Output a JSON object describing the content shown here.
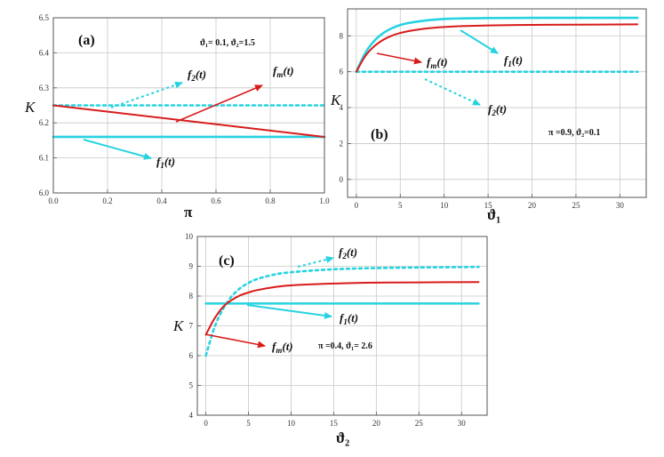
{
  "colors": {
    "fm": "#d81b1b",
    "f1": "#27d3e0",
    "f2": "#27d3e0",
    "grid": "#c8c8c8",
    "frame": "#555555"
  },
  "chart_data": [
    {
      "id": "a",
      "type": "line",
      "panel_label": "(a)",
      "xlabel": "π",
      "ylabel": "K",
      "xlim": [
        0,
        1
      ],
      "ylim": [
        6.0,
        6.5
      ],
      "xticks": [
        0,
        0.2,
        0.4,
        0.6,
        0.8,
        1.0
      ],
      "xtick_labels": [
        "0.0",
        "0.2",
        "0.4",
        "0.6",
        "0.8",
        "1.0"
      ],
      "yticks": [
        6.0,
        6.1,
        6.2,
        6.3,
        6.4,
        6.5
      ],
      "ytick_labels": [
        "6.0",
        "6.1",
        "6.2",
        "6.3",
        "6.4",
        "6.5"
      ],
      "params": "ϑ₁= 0.1, ϑ₂=1.5",
      "grid": true,
      "series": [
        {
          "key": "fm",
          "label": "fm(t)",
          "style": "solid",
          "x": [
            0,
            1
          ],
          "y": [
            6.25,
            6.16
          ]
        },
        {
          "key": "f1",
          "label": "f1(t)",
          "style": "solid",
          "x": [
            0,
            1
          ],
          "y": [
            6.16,
            6.16
          ]
        },
        {
          "key": "f2",
          "label": "f2(t)",
          "style": "dotted",
          "x": [
            0,
            1
          ],
          "y": [
            6.25,
            6.25
          ]
        }
      ]
    },
    {
      "id": "b",
      "type": "line",
      "panel_label": "(b)",
      "xlabel": "ϑ₁",
      "ylabel": "K",
      "xlim": [
        -1,
        33
      ],
      "ylim": [
        -1,
        9.5
      ],
      "xticks": [
        0,
        5,
        10,
        15,
        20,
        25,
        30
      ],
      "xtick_labels": [
        "0",
        "5",
        "10",
        "15",
        "20",
        "25",
        "30"
      ],
      "yticks": [
        0,
        2,
        4,
        6,
        8
      ],
      "ytick_labels": [
        "0",
        "2",
        "4",
        "6",
        "8"
      ],
      "params": "π =0.9,  ϑ₂=0.1",
      "grid": true,
      "series": [
        {
          "key": "fm",
          "label": "fm(t)",
          "style": "solid",
          "x": [
            0,
            1,
            2,
            3,
            4,
            5,
            6,
            8,
            10,
            12,
            15,
            20,
            25,
            32
          ],
          "y": [
            6.0,
            6.86,
            7.4,
            7.76,
            8.0,
            8.16,
            8.27,
            8.41,
            8.49,
            8.54,
            8.58,
            8.61,
            8.62,
            8.64
          ]
        },
        {
          "key": "f1",
          "label": "f1(t)",
          "style": "solid",
          "x": [
            0,
            1,
            2,
            3,
            4,
            5,
            6,
            8,
            10,
            12,
            15,
            20,
            25,
            32
          ],
          "y": [
            6.0,
            7.03,
            7.7,
            8.13,
            8.41,
            8.6,
            8.72,
            8.86,
            8.94,
            8.97,
            8.99,
            9.0,
            9.0,
            9.0
          ]
        },
        {
          "key": "f2",
          "label": "f2(t)",
          "style": "dotted",
          "x": [
            0,
            32
          ],
          "y": [
            6.0,
            6.0
          ]
        }
      ]
    },
    {
      "id": "c",
      "type": "line",
      "panel_label": "(c)",
      "xlabel": "ϑ₂",
      "ylabel": "K",
      "xlim": [
        -1,
        33
      ],
      "ylim": [
        4,
        10
      ],
      "xticks": [
        0,
        5,
        10,
        15,
        20,
        25,
        30
      ],
      "xtick_labels": [
        "0",
        "5",
        "10",
        "15",
        "20",
        "25",
        "30"
      ],
      "yticks": [
        4,
        5,
        6,
        7,
        8,
        9,
        10
      ],
      "ytick_labels": [
        "4",
        "5",
        "6",
        "7",
        "8",
        "9",
        "10"
      ],
      "params": "π =0.4,  ϑ₁= 2.6",
      "grid": true,
      "series": [
        {
          "key": "fm",
          "label": "fm(t)",
          "style": "solid",
          "x": [
            0,
            1,
            2,
            3,
            4,
            5,
            6,
            8,
            10,
            15,
            20,
            25,
            32
          ],
          "y": [
            6.7,
            7.24,
            7.63,
            7.86,
            8.02,
            8.12,
            8.2,
            8.3,
            8.36,
            8.42,
            8.45,
            8.46,
            8.47
          ]
        },
        {
          "key": "f1",
          "label": "f1(t)",
          "style": "solid",
          "x": [
            0,
            32
          ],
          "y": [
            7.75,
            7.75
          ]
        },
        {
          "key": "f2",
          "label": "f2(t)",
          "style": "dotted",
          "x": [
            0,
            1,
            2,
            3,
            4,
            5,
            6,
            8,
            10,
            15,
            20,
            25,
            32
          ],
          "y": [
            6.0,
            6.94,
            7.56,
            7.98,
            8.26,
            8.44,
            8.57,
            8.72,
            8.8,
            8.9,
            8.94,
            8.96,
            8.98
          ]
        }
      ]
    }
  ]
}
